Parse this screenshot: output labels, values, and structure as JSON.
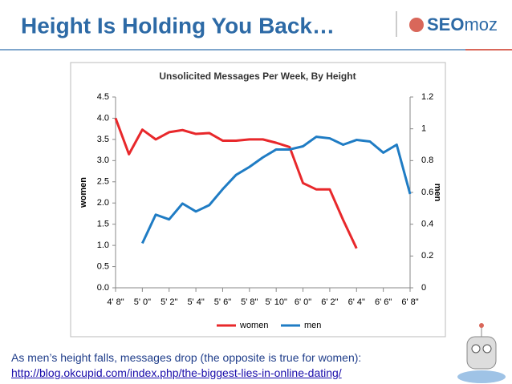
{
  "header": {
    "title": "Height Is Holding You Back…",
    "logo": [
      "SEO",
      "moz"
    ]
  },
  "chart_data": {
    "type": "line",
    "title": "Unsolicited Messages Per Week, By Height",
    "y_label": "women",
    "y2_label": "men",
    "categories": [
      "4' 8\"",
      null,
      "5' 0\"",
      null,
      "5' 2\"",
      null,
      "5' 4\"",
      null,
      "5' 6\"",
      null,
      "5' 8\"",
      null,
      "5' 10\"",
      null,
      "6' 0\"",
      null,
      "6' 2\"",
      null,
      "6' 4\"",
      null,
      "6' 6\"",
      null,
      "6' 8\""
    ],
    "series": [
      {
        "name": "women",
        "color": "#e8282b",
        "values": [
          4.0,
          3.15,
          3.73,
          3.5,
          3.67,
          3.72,
          3.63,
          3.65,
          3.47,
          3.47,
          3.5,
          3.5,
          3.42,
          3.32,
          2.47,
          2.32,
          2.32,
          1.6,
          0.93,
          null,
          null,
          null,
          null
        ]
      },
      {
        "name": "men",
        "color": "#1f7cc4",
        "axis": "y2",
        "values": [
          null,
          null,
          0.28,
          0.46,
          0.43,
          0.53,
          0.48,
          0.52,
          0.62,
          0.71,
          0.76,
          0.82,
          0.87,
          0.87,
          0.89,
          0.95,
          0.94,
          0.9,
          0.93,
          0.92,
          0.85,
          0.9,
          0.59
        ]
      }
    ],
    "ylim": [
      0,
      4.5
    ],
    "yticks": [
      {
        "value": 0,
        "label": "0.0"
      },
      {
        "value": 0.5,
        "label": "0.5"
      },
      {
        "value": 1,
        "label": "1.0"
      },
      {
        "value": 1.5,
        "label": "1.5"
      },
      {
        "value": 2,
        "label": "2.0"
      },
      {
        "value": 2.5,
        "label": "2.5"
      },
      {
        "value": 3,
        "label": "3.0"
      },
      {
        "value": 3.5,
        "label": "3.5"
      },
      {
        "value": 4,
        "label": "4.0"
      },
      {
        "value": 4.5,
        "label": "4.5"
      }
    ],
    "y2lim": [
      0,
      1.2
    ],
    "y2ticks": [
      0,
      0.2,
      0.4,
      0.6,
      0.8,
      1,
      1.2
    ],
    "legend": "bottom"
  },
  "caption": "As men’s height falls, messages drop (the opposite is true for women):",
  "link": "http://blog.okcupid.com/index.php/the-biggest-lies-in-online-dating/"
}
